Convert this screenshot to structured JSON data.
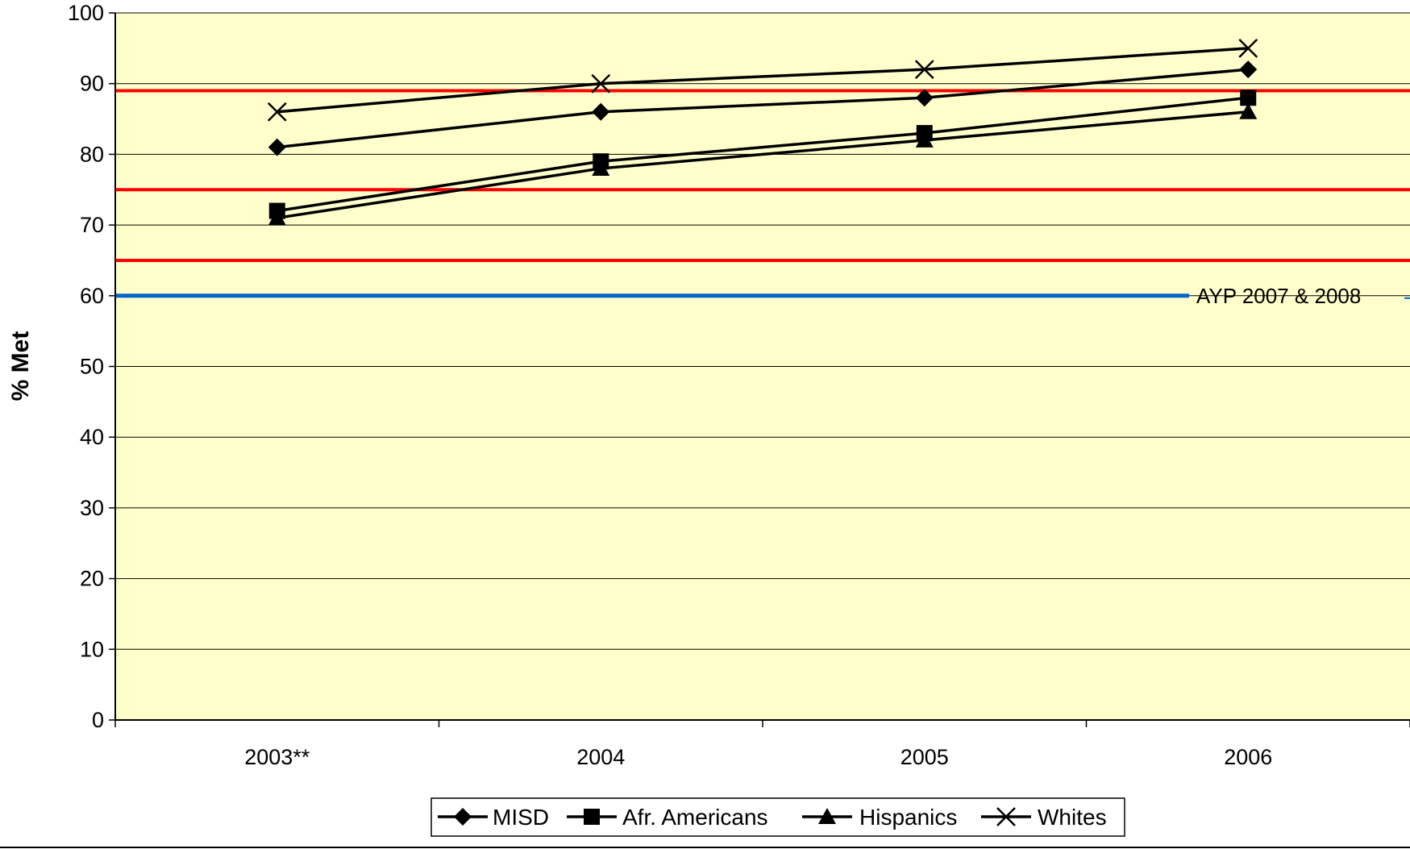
{
  "chart_data": {
    "type": "line",
    "title": "",
    "xlabel": "",
    "ylabel": "% Met",
    "categories": [
      "2003**",
      "2004",
      "2005",
      "2006"
    ],
    "ylim": [
      0,
      100
    ],
    "yticks": [
      0,
      10,
      20,
      30,
      40,
      50,
      60,
      70,
      80,
      90,
      100
    ],
    "grid": true,
    "plot_background": "#FFFFCC",
    "series": [
      {
        "name": "MISD",
        "marker": "diamond",
        "color": "#000000",
        "values": [
          81,
          86,
          88,
          92
        ]
      },
      {
        "name": "Afr. Americans",
        "marker": "square",
        "color": "#000000",
        "values": [
          72,
          79,
          83,
          88
        ]
      },
      {
        "name": "Hispanics",
        "marker": "triangle",
        "color": "#000000",
        "values": [
          71,
          78,
          82,
          86
        ]
      },
      {
        "name": "Whites",
        "marker": "x",
        "color": "#000000",
        "values": [
          86,
          90,
          92,
          95
        ]
      }
    ],
    "reference_lines": [
      {
        "value": 89,
        "color": "#FF0000",
        "label": ""
      },
      {
        "value": 75,
        "color": "#FF0000",
        "label": ""
      },
      {
        "value": 65,
        "color": "#FF0000",
        "label": ""
      },
      {
        "value": 60,
        "color": "#0066CC",
        "label": "AYP 2007 & 2008"
      }
    ],
    "legend_position": "bottom"
  }
}
